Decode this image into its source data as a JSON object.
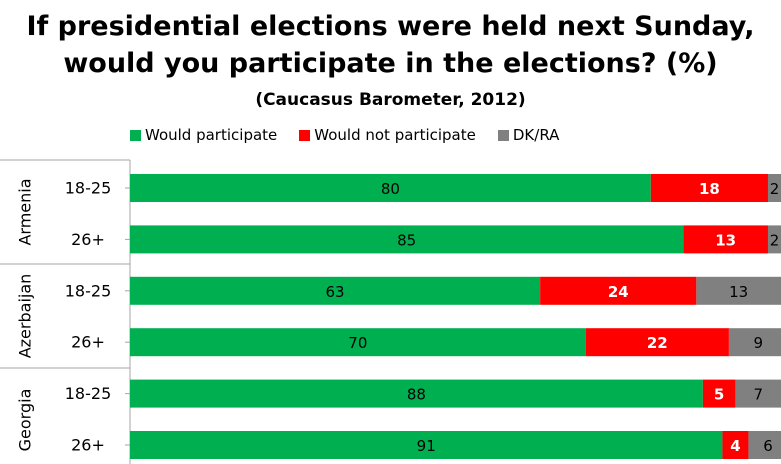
{
  "chart_data": {
    "type": "bar",
    "orientation": "horizontal",
    "stacked": true,
    "title_line1": "If presidential elections were held next Sunday,",
    "title_line2": "would you participate in the elections? (%)",
    "subtitle": "(Caucasus Barometer, 2012)",
    "legend_placement": "top",
    "groups": [
      {
        "name": "Armenia",
        "rows": [
          "18-25",
          "26+"
        ]
      },
      {
        "name": "Azerbaijan",
        "rows": [
          "18-25",
          "26+"
        ]
      },
      {
        "name": "Georgia",
        "rows": [
          "18-25",
          "26+"
        ]
      }
    ],
    "series": [
      {
        "name": "Would participate",
        "color": "#00b050",
        "values": [
          80,
          85,
          63,
          70,
          88,
          91
        ]
      },
      {
        "name": "Would not participate",
        "color": "#ff0000",
        "values": [
          18,
          13,
          24,
          22,
          5,
          4
        ]
      },
      {
        "name": "DK/RA",
        "color": "#808080",
        "values": [
          2,
          2,
          13,
          9,
          7,
          6
        ]
      }
    ],
    "label_colors": [
      "#000000",
      "#ffffff",
      "#000000"
    ],
    "xlim": [
      0,
      100
    ],
    "grid": false
  }
}
